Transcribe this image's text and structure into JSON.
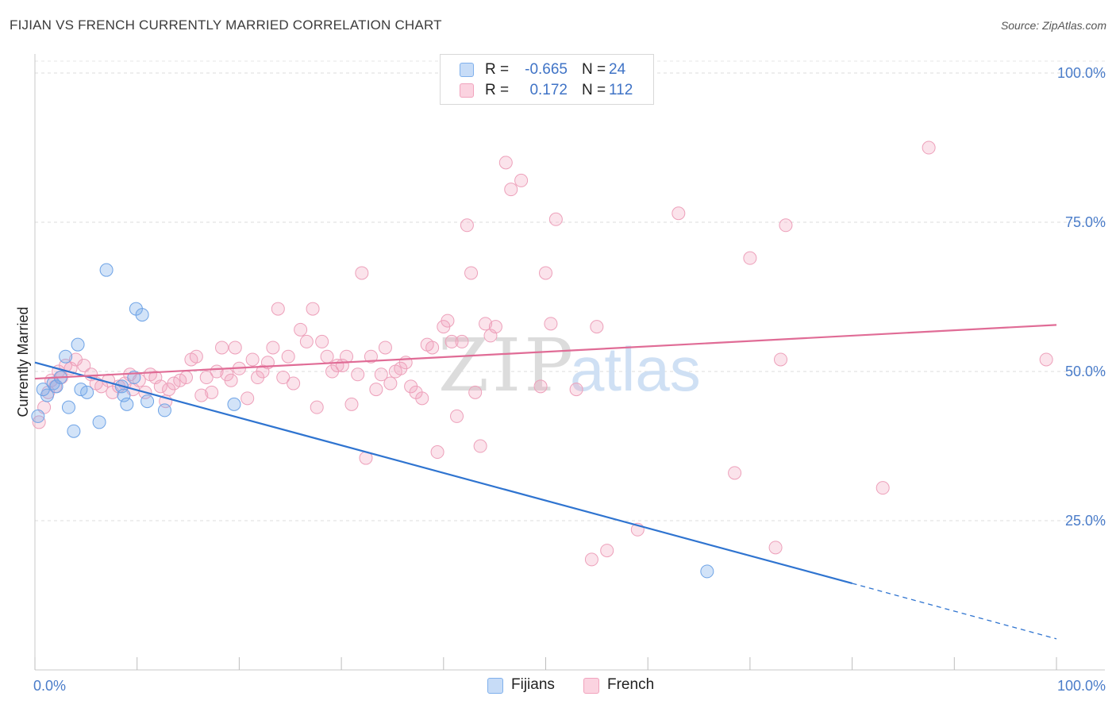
{
  "header": {
    "title": "FIJIAN VS FRENCH CURRENTLY MARRIED CORRELATION CHART",
    "source": "Source: ZipAtlas.com"
  },
  "watermark": {
    "zip": "ZIP",
    "atlas": "atlas"
  },
  "legend": {
    "rows": [
      {
        "r_label": "R =",
        "r_value": "-0.665",
        "n_label": "N =",
        "n_value": "24",
        "color": "#7fb0ec"
      },
      {
        "r_label": "R =",
        "r_value": "0.172",
        "n_label": "N =",
        "n_value": "112",
        "color": "#f1a3bd"
      }
    ]
  },
  "bottom_legend": [
    {
      "label": "Fijians",
      "color": "#7fb0ec"
    },
    {
      "label": "French",
      "color": "#f1a3bd"
    }
  ],
  "chart_data": {
    "type": "scatter",
    "title": "FIJIAN VS FRENCH CURRENTLY MARRIED CORRELATION CHART",
    "xlabel": "",
    "ylabel": "Currently Married",
    "xlim": [
      0,
      100
    ],
    "ylim": [
      0,
      102
    ],
    "x_tick_labels": [
      {
        "value": 0,
        "label": "0.0%"
      },
      {
        "value": 100,
        "label": "100.0%"
      }
    ],
    "y_tick_labels": [
      {
        "value": 25,
        "label": "25.0%"
      },
      {
        "value": 50,
        "label": "50.0%"
      },
      {
        "value": 75,
        "label": "75.0%"
      },
      {
        "value": 100,
        "label": "100.0%"
      }
    ],
    "x_minor_ticks": [
      0,
      10,
      20,
      30,
      40,
      50,
      60,
      70,
      80,
      90,
      100
    ],
    "gridlines": "horizontal-dashed",
    "legend_position": "top-center",
    "series": [
      {
        "name": "Fijians",
        "color": "#7fb0ec",
        "line_color": "#2f74d0",
        "trend": {
          "x0": 0,
          "y0": 51.5,
          "x1": 80,
          "y1": 14.5,
          "dashed_to_x": 100,
          "dashed_to_y": 5.2
        },
        "points": [
          [
            0.3,
            42.5
          ],
          [
            1.2,
            46.0
          ],
          [
            1.8,
            48.0
          ],
          [
            2.1,
            47.5
          ],
          [
            2.5,
            49.0
          ],
          [
            3.0,
            52.5
          ],
          [
            3.3,
            44.0
          ],
          [
            4.2,
            54.5
          ],
          [
            4.5,
            47.0
          ],
          [
            5.1,
            46.5
          ],
          [
            6.3,
            41.5
          ],
          [
            3.8,
            40.0
          ],
          [
            7.0,
            67.0
          ],
          [
            8.5,
            47.5
          ],
          [
            8.7,
            46.0
          ],
          [
            9.0,
            44.5
          ],
          [
            9.7,
            49.0
          ],
          [
            9.9,
            60.5
          ],
          [
            10.5,
            59.5
          ],
          [
            11.0,
            45.0
          ],
          [
            12.7,
            43.5
          ],
          [
            19.5,
            44.5
          ],
          [
            65.8,
            16.5
          ],
          [
            0.8,
            47.0
          ]
        ]
      },
      {
        "name": "French",
        "color": "#f1a3bd",
        "line_color": "#e06c96",
        "trend": {
          "x0": 0,
          "y0": 48.8,
          "x1": 100,
          "y1": 57.8
        },
        "points": [
          [
            0.4,
            41.5
          ],
          [
            0.9,
            44.0
          ],
          [
            1.3,
            46.5
          ],
          [
            1.6,
            48.5
          ],
          [
            2.0,
            47.5
          ],
          [
            2.3,
            50.0
          ],
          [
            2.6,
            49.0
          ],
          [
            3.0,
            51.0
          ],
          [
            3.5,
            50.5
          ],
          [
            4.0,
            52.0
          ],
          [
            4.8,
            51.0
          ],
          [
            5.5,
            49.5
          ],
          [
            6.0,
            48.0
          ],
          [
            6.5,
            47.5
          ],
          [
            7.2,
            48.5
          ],
          [
            7.6,
            46.5
          ],
          [
            8.2,
            47.5
          ],
          [
            8.8,
            48.0
          ],
          [
            9.3,
            49.5
          ],
          [
            9.6,
            47.0
          ],
          [
            10.2,
            48.5
          ],
          [
            10.8,
            46.5
          ],
          [
            11.3,
            49.5
          ],
          [
            11.8,
            49.0
          ],
          [
            12.3,
            47.5
          ],
          [
            12.8,
            45.0
          ],
          [
            13.1,
            47.0
          ],
          [
            13.6,
            48.0
          ],
          [
            14.2,
            48.5
          ],
          [
            14.8,
            49.0
          ],
          [
            15.3,
            52.0
          ],
          [
            15.8,
            52.5
          ],
          [
            16.3,
            46.0
          ],
          [
            16.8,
            49.0
          ],
          [
            17.3,
            46.5
          ],
          [
            17.8,
            50.0
          ],
          [
            18.3,
            54.0
          ],
          [
            18.8,
            49.5
          ],
          [
            19.2,
            48.5
          ],
          [
            19.6,
            54.0
          ],
          [
            20.0,
            50.5
          ],
          [
            20.8,
            45.5
          ],
          [
            21.3,
            52.0
          ],
          [
            21.8,
            49.0
          ],
          [
            22.3,
            50.0
          ],
          [
            22.8,
            51.5
          ],
          [
            23.3,
            54.0
          ],
          [
            23.8,
            60.5
          ],
          [
            24.3,
            49.0
          ],
          [
            24.8,
            52.5
          ],
          [
            25.3,
            48.0
          ],
          [
            26.0,
            57.0
          ],
          [
            26.6,
            55.0
          ],
          [
            27.2,
            60.5
          ],
          [
            27.6,
            44.0
          ],
          [
            28.1,
            55.0
          ],
          [
            28.6,
            52.5
          ],
          [
            29.1,
            50.0
          ],
          [
            29.6,
            51.0
          ],
          [
            30.1,
            51.0
          ],
          [
            30.5,
            52.5
          ],
          [
            31.0,
            44.5
          ],
          [
            31.6,
            49.5
          ],
          [
            32.0,
            66.5
          ],
          [
            32.4,
            35.5
          ],
          [
            32.9,
            52.5
          ],
          [
            33.4,
            47.0
          ],
          [
            33.9,
            49.5
          ],
          [
            34.3,
            54.0
          ],
          [
            34.8,
            48.0
          ],
          [
            35.3,
            50.0
          ],
          [
            35.8,
            50.5
          ],
          [
            36.3,
            51.5
          ],
          [
            36.8,
            47.5
          ],
          [
            37.3,
            46.5
          ],
          [
            37.9,
            45.5
          ],
          [
            38.4,
            54.5
          ],
          [
            38.9,
            54.0
          ],
          [
            39.4,
            36.5
          ],
          [
            40.0,
            57.5
          ],
          [
            40.4,
            58.5
          ],
          [
            40.8,
            55.0
          ],
          [
            41.3,
            42.5
          ],
          [
            41.8,
            55.0
          ],
          [
            42.3,
            74.5
          ],
          [
            42.7,
            66.5
          ],
          [
            43.1,
            46.5
          ],
          [
            43.6,
            37.5
          ],
          [
            44.1,
            58.0
          ],
          [
            44.6,
            56.0
          ],
          [
            45.1,
            57.5
          ],
          [
            46.1,
            85.0
          ],
          [
            46.6,
            80.5
          ],
          [
            47.6,
            82.0
          ],
          [
            49.5,
            47.5
          ],
          [
            50.0,
            66.5
          ],
          [
            50.5,
            58.0
          ],
          [
            51.0,
            75.5
          ],
          [
            53.0,
            47.0
          ],
          [
            55.0,
            57.5
          ],
          [
            54.5,
            18.5
          ],
          [
            56.0,
            20.0
          ],
          [
            59.0,
            23.5
          ],
          [
            63.0,
            76.5
          ],
          [
            68.5,
            33.0
          ],
          [
            70.0,
            69.0
          ],
          [
            73.0,
            52.0
          ],
          [
            73.5,
            74.5
          ],
          [
            72.5,
            20.5
          ],
          [
            83.0,
            30.5
          ],
          [
            87.5,
            87.5
          ],
          [
            99.0,
            52.0
          ]
        ]
      }
    ]
  }
}
